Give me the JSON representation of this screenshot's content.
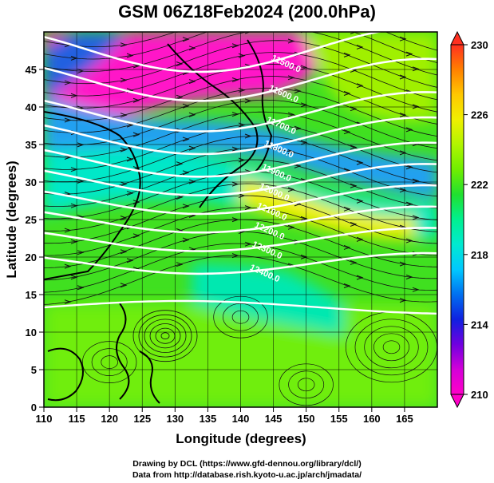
{
  "title": "GSM 06Z18Feb2024 (200.0hPa)",
  "x_axis": {
    "label": "Longitude (degrees)",
    "ticks": [
      "110",
      "115",
      "120",
      "125",
      "130",
      "135",
      "140",
      "145",
      "150",
      "155",
      "160",
      "165"
    ],
    "range": [
      110,
      170
    ]
  },
  "y_axis": {
    "label": "Latitude  (degrees)",
    "ticks": [
      "0",
      "5",
      "10",
      "15",
      "20",
      "25",
      "30",
      "35",
      "40",
      "45"
    ],
    "range": [
      0,
      50
    ]
  },
  "colorbar": {
    "ticks": [
      "210",
      "214",
      "218",
      "222",
      "226",
      "230"
    ],
    "range": [
      210,
      230
    ],
    "colors": [
      "#ff00c8",
      "#d400d8",
      "#7000e0",
      "#1020e0",
      "#0070f0",
      "#00c8ff",
      "#00ead0",
      "#00f090",
      "#20e030",
      "#70ee00",
      "#b0f500",
      "#f0f000",
      "#ffc800",
      "#ff8000",
      "#ff3020"
    ]
  },
  "contours": {
    "color": "#ffffff",
    "labels": [
      "11500.0",
      "11600.0",
      "11700.0",
      "11800.0",
      "11900.0",
      "12000.0",
      "12100.0",
      "12200.0",
      "12300.0",
      "12400.0"
    ]
  },
  "credits": {
    "line1": "Drawing by DCL (https://www.gfd-dennou.org/library/dcl/)",
    "line2": "Data from http://database.rish.kyoto-u.ac.jp/arch/jmadata/"
  },
  "coastline_color": "#000000",
  "chart_data": {
    "type": "heatmap",
    "title": "GSM 06Z18Feb2024 (200.0hPa)",
    "xlabel": "Longitude (degrees)",
    "ylabel": "Latitude  (degrees)",
    "xlim": [
      110,
      170
    ],
    "ylim": [
      0,
      50
    ],
    "colorbar_range": [
      210,
      230
    ],
    "overlays": [
      "streamlines",
      "geopotential height contours",
      "coastlines"
    ]
  }
}
